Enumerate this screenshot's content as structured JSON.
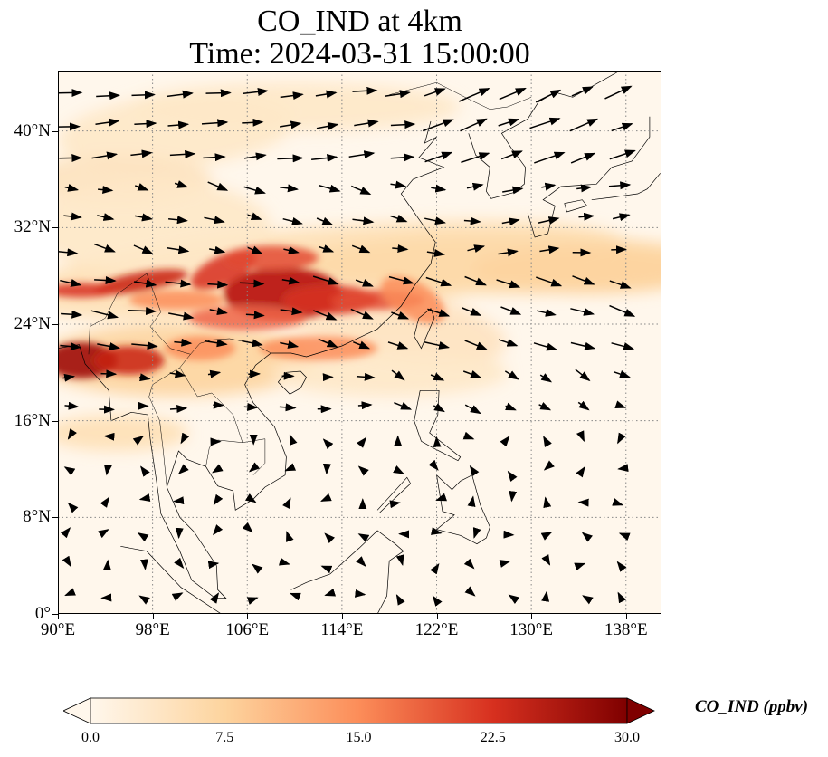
{
  "title_line1": "CO_IND at 4km",
  "title_line2": "Time: 2024-03-31 15:00:00",
  "map": {
    "lon_range": [
      90,
      141
    ],
    "lat_range": [
      0,
      45
    ],
    "lon_ticks": [
      "90°E",
      "98°E",
      "106°E",
      "114°E",
      "122°E",
      "130°E",
      "138°E"
    ],
    "lat_ticks": [
      "0°",
      "8°N",
      "16°N",
      "24°N",
      "32°N",
      "40°N"
    ],
    "gridlines": true
  },
  "colorbar": {
    "label": "CO_IND (ppbv)",
    "min": 0.0,
    "max": 30.0,
    "ticks": [
      "0.0",
      "7.5",
      "15.0",
      "22.5",
      "30.0"
    ],
    "extend": "both",
    "colors": [
      "#fff7ec",
      "#fdd49e",
      "#fc8d59",
      "#d7301f",
      "#7f0000"
    ]
  }
}
